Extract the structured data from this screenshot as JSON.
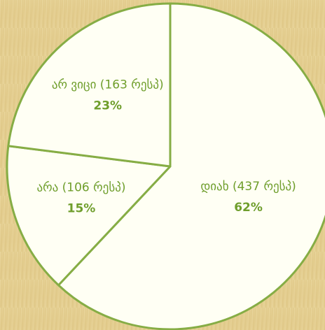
{
  "chart_data": {
    "type": "pie",
    "categories": [
      "დიახ (437 რესპ)",
      "არა (106 რესპ)",
      "არ ვიცი (163 რესპ)"
    ],
    "values": [
      62,
      15,
      23
    ],
    "value_labels": [
      "62%",
      "15%",
      "23%"
    ],
    "color": "#fffff4",
    "edge_color": "#86ad45"
  }
}
